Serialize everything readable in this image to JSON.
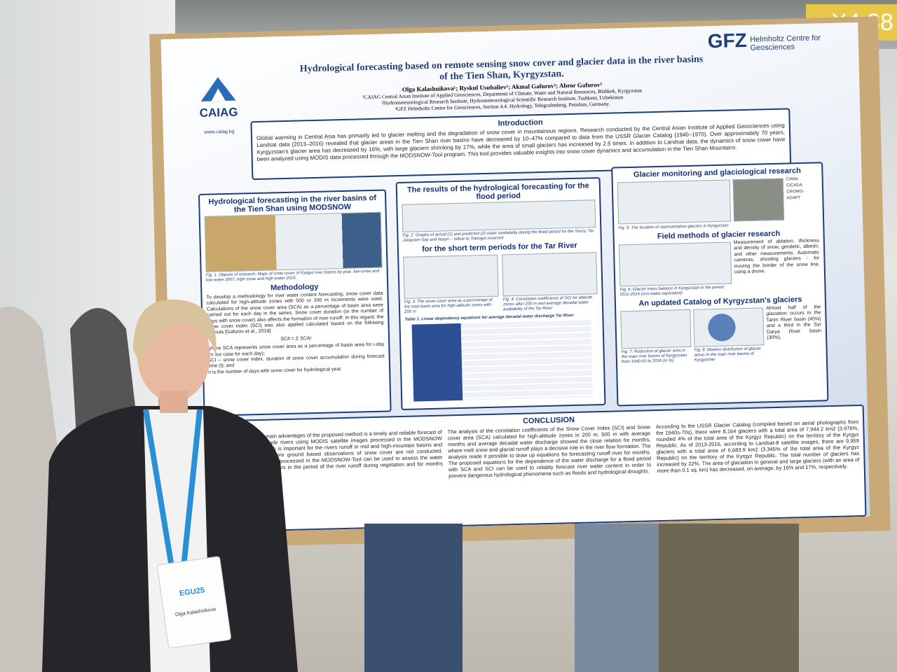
{
  "booth_sign": "X4.38",
  "header": {
    "logo_left": "CAIAG",
    "website": "www.caiag.kg",
    "logo_right": "GFZ",
    "logo_right_sub": "Helmholtz Centre for Geosciences",
    "title": "Hydrological forecasting based on remote sensing snow cover and glacier data in the river basins of the Tien Shan, Kyrgyzstan.",
    "authors": "Olga Kalashnikova¹; Ryskul Usubaliev¹; Akmal Gafurov²; Abror Gafurov³",
    "affiliations": [
      "¹CAIAG Central Asian Institute of Applied Geosciences, Department of Climate, Water and Natural Resources, Bishkek, Kyrgyzstan",
      "²Hydrometeorological Research Institute, Hydrometeorological Scientific Research Institute, Tashkent, Uzbekistan",
      "³GFZ Helmholtz Centre for Geosciences, Section 4.4: Hydrology, Telegrafenberg, Potsdam, Germany."
    ]
  },
  "introduction": {
    "heading": "Introduction",
    "text": "Global warming in Central Asia has primarily led to glacier melting and the degradation of snow cover in mountainous regions. Research conducted by the Central Asian Institute of Applied Geosciences using Landsat data (2013–2016) revealed that glacier areas in the Tien Shan river basins have decreased by 10–47% compared to data from the USSR Glacier Catalog (1940–1970). Over approximately 70 years, Kyrgyzstan's glacier area has decreased by 16%, with large glaciers shrinking by 17%, while the area of small glaciers has increased by 2.5 times. In addition to Landsat data, the dynamics of snow cover have been analyzed using MODIS data processed through the MODSNOW-Tool program. This tool provides valuable insights into snow cover dynamics and accumulation in the Tien Shan Mountains."
  },
  "panel_modsnow": {
    "heading": "Hydrological forecasting in the river basins of the Tien Shan using MODSNOW",
    "fig1": "Fig. 1: Objects of research: Maps of snow cover of Kyrgyz river basins by year: low-snow and low-water 2007, high-snow and high-water 2016.",
    "methodology_heading": "Methodology",
    "methodology_text": "To develop a methodology for river water content forecasting, snow cover data calculated for high-altitude zones with 500 or 200 m increments were used. Calculations of the snow cover area (SCA) as a percentage of basin area were carried out for each day in the series. Snow cover duration (or the number of days with snow cover) also affects the formation of river runoff. In this regard, the snow cover index (SCI) was also applied calculated based on the following formula [Gafurov et al., 2018]",
    "formula": "SCIt = Σ SCAi",
    "definitions": [
      "where SCA represents snow cover area as a percentage of basin area for i-day (in our case for each day);",
      "SCI – snow cover index, duration of snow cover accumulation during forecast time (t); and",
      "n is the number of days with snow cover for hydrological year."
    ]
  },
  "panel_results": {
    "heading": "The results of the hydrological forecasting for the flood period",
    "fig2": "Fig. 2: Graphs of actual (1) and predicted (2) water availability during the flood period for the Yassy, Tar, Jetayram-Say and Naryn – inflow to Toktogul reservoir",
    "subheading": "for the short term periods for the Tar River",
    "fig3": "Fig. 3: The snow cover area as a percentage of the total basin area for high-altitude zones with 200 m",
    "fig4": "Fig. 4: Correlation coefficients of SCI for altitude zones after 200 m and average decadal water availability of the Tar River",
    "table_caption": "Table 1. Linear dependency equations for average decadal water discharge Tar River"
  },
  "panel_glacier": {
    "heading": "Glacier monitoring and glaciological research",
    "fig5": "Fig. 5: The location of representative glaciers in Kyrgyzstan",
    "partners": [
      "CAWa",
      "CICADA",
      "CROMO-ADAPT"
    ],
    "field_heading": "Field methods of glacier research",
    "field_text": "Measurement of ablation, thickness and density of snow, geodetic, albedo, and other measurements. Automatic cameras, shooting glaciers - for moving the border of the snow line, using a drone.",
    "fig6": "Fig. 6: Glacier mass balance in Kyrgyzstan in the period 2011-2024 (mm water equivalent)",
    "catalog_heading": "An updated Catalog of Kyrgyzstan's glaciers",
    "catalog_text": "Almost half of the glaciation occurs in the Tarim River basin (45%) and a third in the Syr Darya River basin (30%).",
    "fig7": "Fig. 7: Reduction of glacier area in the main river basins of Kyrgyzstan from 1940-50 to 2016 (in %)",
    "fig8": "Fig. 8: Modern distribution of glacier areas in the main river basins of Kyrgyzstan"
  },
  "conclusion": {
    "heading": "CONCLUSION",
    "columns": [
      "One of the main advantages of the proposed method is a timely and reliable forecast of the high-altitude rivers using MODIS satellite images processed in the MODSNOW program, which is important for the rivers runoff in mid and high-mountain basins and the basins, where ground based observations of snow cover are not conducted. Satellite images processed in the MODSNOW-Tool can be used to assess the water availability of rivers in the period of the river runoff during vegetation and for months and decades.",
      "The analysis of the correlation coefficients of the Snow Cover Index (SCI) and Snow cover area (SCA) calculated for high-altitude zones in 200 m, 500 m with average months and average decadal water discharge showed the close relation for months, where melt snow and glacial runoff plays a decisive role in the river flow formation. The analysis made it possible to draw up equations for forecasting runoff river for months. The proposed equations for the dependence of the water discharge for a flood period with SCA and SCI can be used to reliably forecast river water content in order to prevent dangerous hydrological phenomena such as floods and hydrological droughts.",
      "According to the USSR Glacier Catalog (compiled based on aerial photographs from the 1940s-70s), there were 8,164 glaciers with a total area of 7,944.2 km2 (3.976%, rounded 4% of the total area of the Kyrgyz Republic) on the territory of the Kyrgyz Republic. As of 2013-2016, according to Landsat-8 satellite images, there are 9,959 glaciers with a total area of 6,683.9 km2 (3.345% of the total area of the Kyrgyz Republic) on the territory of the Kyrgyz Republic. The total number of glaciers has increased by 22%. The area of glaciation in general and large glaciers (with an area of more than 0.1 sq. km) has decreased, on average, by 16% and 17%, respectively."
    ]
  },
  "badge": {
    "event": "EGU25",
    "name": "Olga Kalashnikova"
  }
}
